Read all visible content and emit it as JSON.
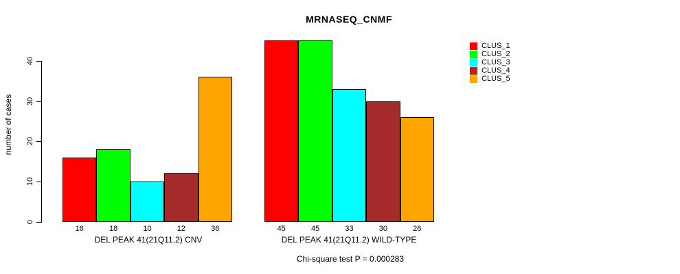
{
  "chart_data": {
    "type": "bar",
    "title": "MRNASEQ_CNMF",
    "ylabel": "number of cases",
    "yticks": [
      0,
      10,
      20,
      30,
      40
    ],
    "ylim": [
      0,
      45
    ],
    "grid": false,
    "legend_position": "top-right",
    "categories": [
      "DEL PEAK 41(21Q11.2) CNV",
      "DEL PEAK 41(21Q11.2) WILD-TYPE"
    ],
    "series": [
      {
        "name": "CLUS_1",
        "color": "#FF0000",
        "values": [
          16,
          45
        ]
      },
      {
        "name": "CLUS_2",
        "color": "#00FF00",
        "values": [
          18,
          45
        ]
      },
      {
        "name": "CLUS_3",
        "color": "#00FFFF",
        "values": [
          10,
          33
        ]
      },
      {
        "name": "CLUS_4",
        "color": "#A52A2A",
        "values": [
          12,
          30
        ]
      },
      {
        "name": "CLUS_5",
        "color": "#FFA500",
        "values": [
          36,
          26
        ]
      }
    ],
    "groups": [
      {
        "label": "DEL PEAK 41(21Q11.2) CNV",
        "values": [
          16,
          18,
          10,
          12,
          36
        ]
      },
      {
        "label": "DEL PEAK 41(21Q11.2) WILD-TYPE",
        "values": [
          45,
          45,
          33,
          30,
          26
        ]
      }
    ],
    "annotation": "Chi-square test P = 0.000283",
    "bar_border_color": "#000000",
    "text_color": "#000000"
  }
}
